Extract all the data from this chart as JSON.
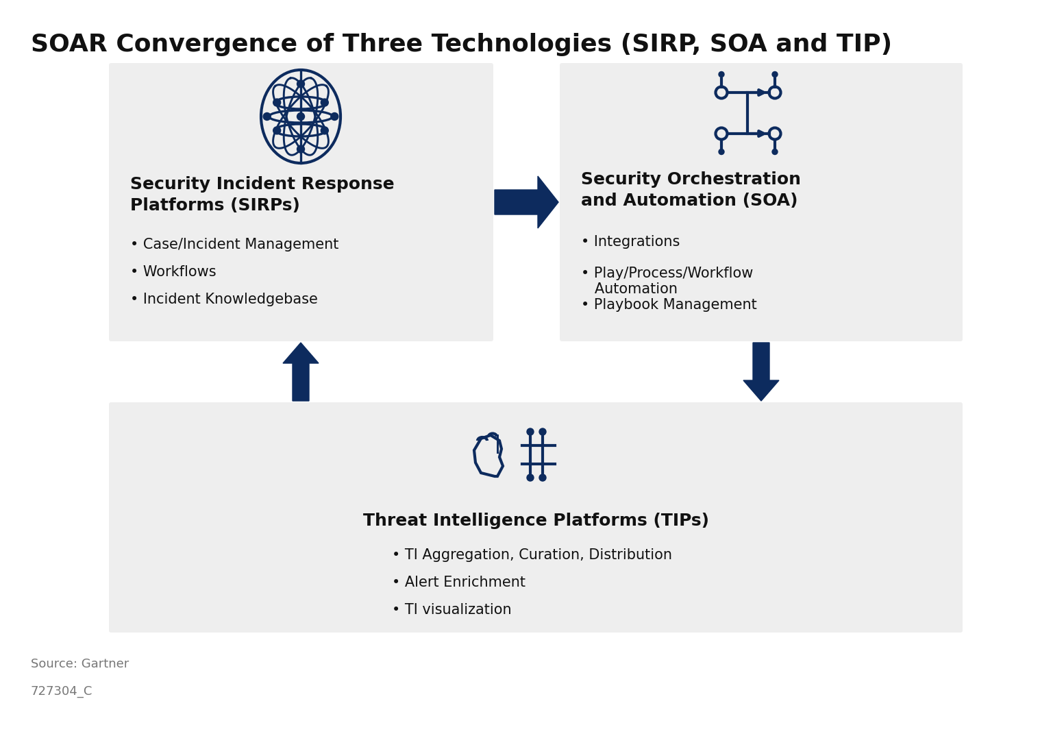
{
  "title": "SOAR Convergence of Three Technologies (SIRP, SOA and TIP)",
  "title_fontsize": 26,
  "title_fontweight": "bold",
  "title_color": "#111111",
  "background_color": "#ffffff",
  "box_bg_color": "#eeeeee",
  "icon_color": "#0d2b5e",
  "arrow_color": "#0d2b5e",
  "text_color": "#111111",
  "bullet_color": "#222222",
  "source_text": "Source: Gartner",
  "id_text": "727304_C",
  "source_color": "#777777",
  "sirp_title": "Security Incident Response\nPlatforms (SIRPs)",
  "sirp_bullets": [
    "• Case/Incident Management",
    "• Workflows",
    "• Incident Knowledgebase"
  ],
  "soa_title": "Security Orchestration\nand Automation (SOA)",
  "soa_bullets": [
    "• Integrations",
    "• Play/Process/Workflow\n   Automation",
    "• Playbook Management"
  ],
  "tip_title": "Threat Intelligence Platforms (TIPs)",
  "tip_bullets": [
    "• TI Aggregation, Curation, Distribution",
    "• Alert Enrichment",
    "• TI visualization"
  ],
  "title_fs": 18,
  "bullet_fs": 15
}
